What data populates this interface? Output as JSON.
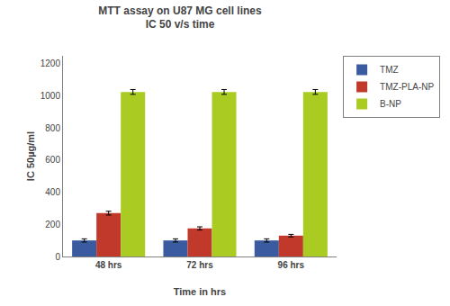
{
  "chart_data": {
    "type": "bar",
    "title": "MTT assay on U87 MG cell lines",
    "subtitle": "IC 50 v/s time",
    "xlabel": "Time in hrs",
    "ylabel": "IC 50µg/ml",
    "categories": [
      "48 hrs",
      "72 hrs",
      "96 hrs"
    ],
    "series": [
      {
        "name": "TMZ",
        "color": "#3A5BA0",
        "values": [
          100,
          100,
          100
        ],
        "errors": [
          10,
          10,
          10
        ]
      },
      {
        "name": "TMZ-PLA-NP",
        "color": "#C0392B",
        "values": [
          270,
          175,
          130
        ],
        "errors": [
          12,
          10,
          8
        ]
      },
      {
        "name": "B-NP",
        "color": "#AACC22",
        "values": [
          1025,
          1025,
          1025
        ],
        "errors": [
          15,
          15,
          15
        ]
      }
    ],
    "ylim": [
      0,
      1250
    ],
    "yticks": [
      0,
      200,
      400,
      600,
      800,
      1000,
      1200
    ],
    "grid": false,
    "legend": "upper right"
  }
}
